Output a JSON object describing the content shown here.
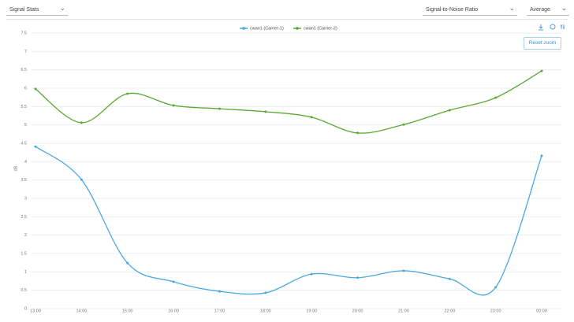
{
  "toolbar": {
    "left_select": "Signal Stats",
    "metric_select": "Signal-to-Noise Ratio",
    "agg_select": "Average",
    "reset_button": "Reset zoom"
  },
  "chart_data": {
    "type": "line",
    "y_label": "dB",
    "categories": [
      "13:00",
      "14:00",
      "15:00",
      "16:00",
      "17:00",
      "18:00",
      "19:00",
      "20:00",
      "21:00",
      "22:00",
      "23:00",
      "00:00"
    ],
    "series": [
      {
        "name": "cwan1 (Carrier-1)",
        "color": "#4aa8e0",
        "values": [
          4.41,
          3.51,
          1.24,
          0.73,
          0.47,
          0.43,
          0.94,
          0.84,
          1.03,
          0.81,
          0.58,
          4.16
        ]
      },
      {
        "name": "cwan1 (Carrier-2)",
        "color": "#5aa832",
        "values": [
          5.98,
          5.06,
          5.85,
          5.53,
          5.44,
          5.36,
          5.21,
          4.78,
          5.01,
          5.4,
          5.74,
          6.47
        ]
      }
    ],
    "ylim": [
      0,
      7.5
    ],
    "yticks": [
      0,
      0.5,
      1,
      1.5,
      2,
      2.5,
      3,
      3.5,
      4,
      4.5,
      5,
      5.5,
      6,
      6.5,
      7,
      7.5
    ],
    "grid": true
  }
}
